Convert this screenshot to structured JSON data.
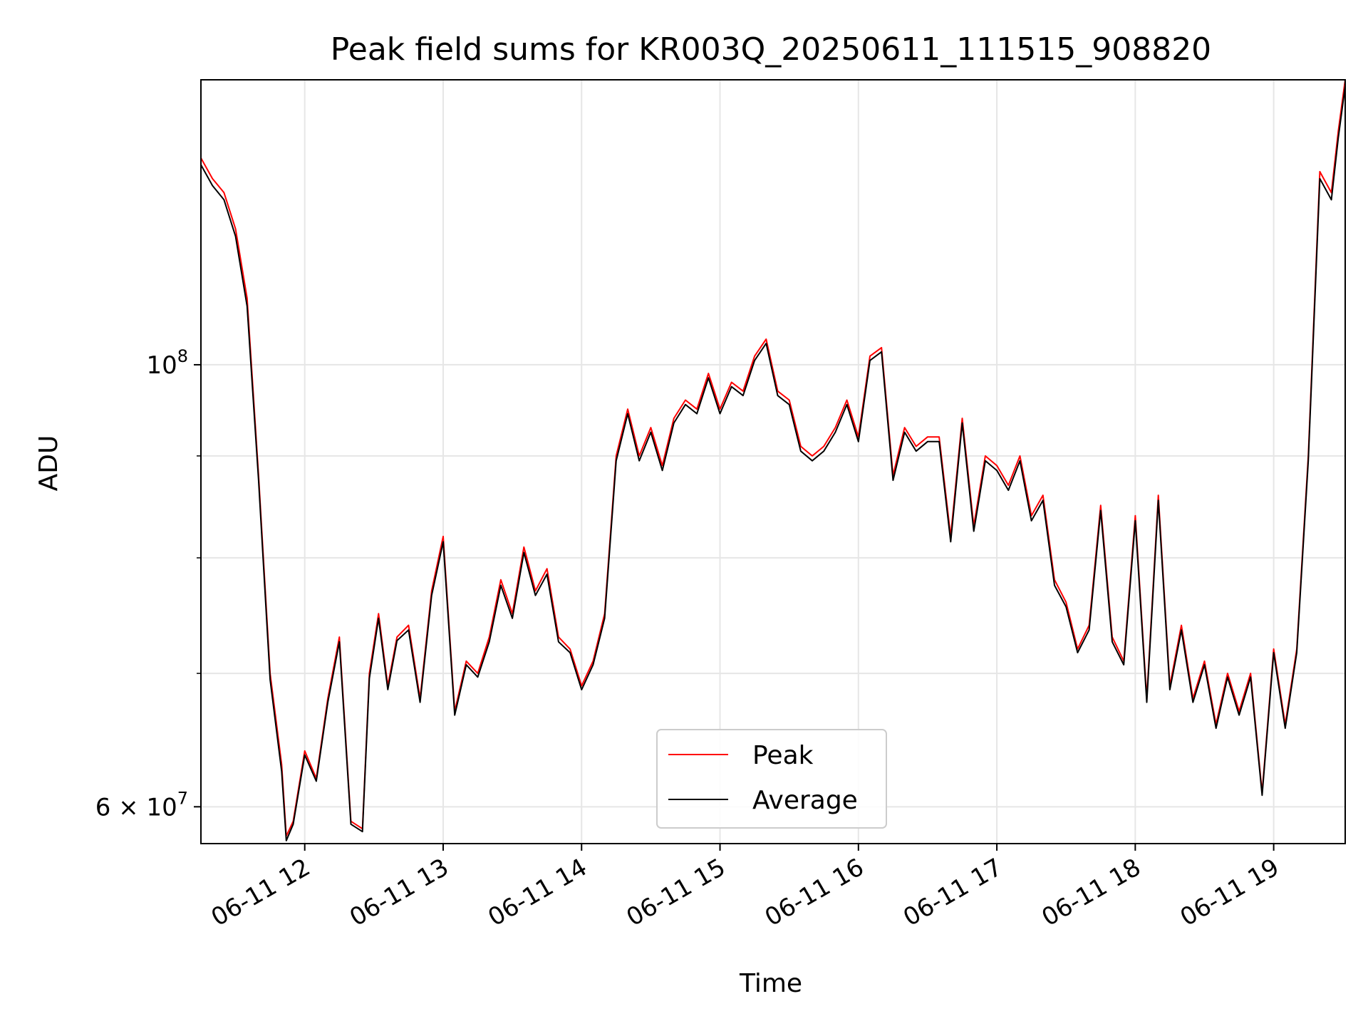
{
  "chart_data": {
    "type": "line",
    "title": "Peak field sums for KR003Q_20250611_111515_908820",
    "xlabel": "Time",
    "ylabel": "ADU",
    "yscale": "log",
    "xlim": [
      "06-11 11:15",
      "06-11 19:31"
    ],
    "ylim": [
      57500000,
      139000000
    ],
    "grid": true,
    "legend_position": "lower center",
    "x_ticks": [
      "06-11 12",
      "06-11 13",
      "06-11 14",
      "06-11 15",
      "06-11 16",
      "06-11 17",
      "06-11 18",
      "06-11 19"
    ],
    "y_ticks": [
      {
        "value": 100000000,
        "base": "10",
        "exp": "8",
        "mult": ""
      },
      {
        "value": 60000000,
        "base": "10",
        "exp": "7",
        "mult": "6 × "
      }
    ],
    "y_minor_ticks": [
      70000000,
      80000000,
      90000000
    ],
    "series": [
      {
        "name": "Peak",
        "color": "#ff0000",
        "x": [
          "06-11 11:15",
          "06-11 11:20",
          "06-11 11:25",
          "06-11 11:30",
          "06-11 11:35",
          "06-11 11:40",
          "06-11 11:45",
          "06-11 11:50",
          "06-11 11:52",
          "06-11 11:55",
          "06-11 12:00",
          "06-11 12:05",
          "06-11 12:10",
          "06-11 12:15",
          "06-11 12:20",
          "06-11 12:25",
          "06-11 12:28",
          "06-11 12:32",
          "06-11 12:36",
          "06-11 12:40",
          "06-11 12:45",
          "06-11 12:50",
          "06-11 12:55",
          "06-11 13:00",
          "06-11 13:05",
          "06-11 13:10",
          "06-11 13:15",
          "06-11 13:20",
          "06-11 13:25",
          "06-11 13:30",
          "06-11 13:35",
          "06-11 13:40",
          "06-11 13:45",
          "06-11 13:50",
          "06-11 13:55",
          "06-11 14:00",
          "06-11 14:05",
          "06-11 14:10",
          "06-11 14:15",
          "06-11 14:20",
          "06-11 14:25",
          "06-11 14:30",
          "06-11 14:35",
          "06-11 14:40",
          "06-11 14:45",
          "06-11 14:50",
          "06-11 14:55",
          "06-11 15:00",
          "06-11 15:05",
          "06-11 15:10",
          "06-11 15:15",
          "06-11 15:20",
          "06-11 15:25",
          "06-11 15:30",
          "06-11 15:35",
          "06-11 15:40",
          "06-11 15:45",
          "06-11 15:50",
          "06-11 15:55",
          "06-11 16:00",
          "06-11 16:05",
          "06-11 16:10",
          "06-11 16:15",
          "06-11 16:20",
          "06-11 16:25",
          "06-11 16:30",
          "06-11 16:35",
          "06-11 16:40",
          "06-11 16:45",
          "06-11 16:50",
          "06-11 16:55",
          "06-11 17:00",
          "06-11 17:05",
          "06-11 17:10",
          "06-11 17:15",
          "06-11 17:20",
          "06-11 17:25",
          "06-11 17:30",
          "06-11 17:35",
          "06-11 17:40",
          "06-11 17:45",
          "06-11 17:50",
          "06-11 17:55",
          "06-11 18:00",
          "06-11 18:05",
          "06-11 18:10",
          "06-11 18:15",
          "06-11 18:20",
          "06-11 18:25",
          "06-11 18:30",
          "06-11 18:35",
          "06-11 18:40",
          "06-11 18:45",
          "06-11 18:50",
          "06-11 18:55",
          "06-11 19:00",
          "06-11 19:05",
          "06-11 19:10",
          "06-11 19:15",
          "06-11 19:20",
          "06-11 19:25",
          "06-11 19:28",
          "06-11 19:31"
        ],
        "y": [
          127000000,
          124000000,
          122000000,
          117000000,
          108000000,
          88000000,
          70000000,
          63000000,
          58000000,
          59000000,
          64000000,
          62000000,
          68000000,
          73000000,
          59000000,
          58500000,
          70000000,
          75000000,
          69000000,
          73000000,
          74000000,
          68000000,
          77000000,
          82000000,
          67000000,
          71000000,
          70000000,
          73000000,
          78000000,
          75000000,
          81000000,
          77000000,
          79000000,
          73000000,
          72000000,
          69000000,
          71000000,
          75000000,
          90000000,
          95000000,
          90000000,
          93000000,
          89000000,
          94000000,
          96000000,
          95000000,
          99000000,
          95000000,
          98000000,
          97000000,
          101000000,
          103000000,
          97000000,
          96000000,
          91000000,
          90000000,
          91000000,
          93000000,
          96000000,
          92000000,
          101000000,
          102000000,
          88000000,
          93000000,
          91000000,
          92000000,
          92000000,
          82000000,
          94000000,
          83000000,
          90000000,
          89000000,
          87000000,
          90000000,
          84000000,
          86000000,
          78000000,
          76000000,
          72000000,
          74000000,
          85000000,
          73000000,
          71000000,
          84000000,
          68000000,
          86000000,
          69000000,
          74000000,
          68000000,
          71000000,
          66000000,
          70000000,
          67000000,
          70000000,
          61000000,
          72000000,
          66000000,
          72000000,
          90000000,
          125000000,
          122000000,
          131000000,
          139000000
        ]
      },
      {
        "name": "Average",
        "color": "#000000",
        "x": [
          "06-11 11:15",
          "06-11 11:20",
          "06-11 11:25",
          "06-11 11:30",
          "06-11 11:35",
          "06-11 11:40",
          "06-11 11:45",
          "06-11 11:50",
          "06-11 11:52",
          "06-11 11:55",
          "06-11 12:00",
          "06-11 12:05",
          "06-11 12:10",
          "06-11 12:15",
          "06-11 12:20",
          "06-11 12:25",
          "06-11 12:28",
          "06-11 12:32",
          "06-11 12:36",
          "06-11 12:40",
          "06-11 12:45",
          "06-11 12:50",
          "06-11 12:55",
          "06-11 13:00",
          "06-11 13:05",
          "06-11 13:10",
          "06-11 13:15",
          "06-11 13:20",
          "06-11 13:25",
          "06-11 13:30",
          "06-11 13:35",
          "06-11 13:40",
          "06-11 13:45",
          "06-11 13:50",
          "06-11 13:55",
          "06-11 14:00",
          "06-11 14:05",
          "06-11 14:10",
          "06-11 14:15",
          "06-11 14:20",
          "06-11 14:25",
          "06-11 14:30",
          "06-11 14:35",
          "06-11 14:40",
          "06-11 14:45",
          "06-11 14:50",
          "06-11 14:55",
          "06-11 15:00",
          "06-11 15:05",
          "06-11 15:10",
          "06-11 15:15",
          "06-11 15:20",
          "06-11 15:25",
          "06-11 15:30",
          "06-11 15:35",
          "06-11 15:40",
          "06-11 15:45",
          "06-11 15:50",
          "06-11 15:55",
          "06-11 16:00",
          "06-11 16:05",
          "06-11 16:10",
          "06-11 16:15",
          "06-11 16:20",
          "06-11 16:25",
          "06-11 16:30",
          "06-11 16:35",
          "06-11 16:40",
          "06-11 16:45",
          "06-11 16:50",
          "06-11 16:55",
          "06-11 17:00",
          "06-11 17:05",
          "06-11 17:10",
          "06-11 17:15",
          "06-11 17:20",
          "06-11 17:25",
          "06-11 17:30",
          "06-11 17:35",
          "06-11 17:40",
          "06-11 17:45",
          "06-11 17:50",
          "06-11 17:55",
          "06-11 18:00",
          "06-11 18:05",
          "06-11 18:10",
          "06-11 18:15",
          "06-11 18:20",
          "06-11 18:25",
          "06-11 18:30",
          "06-11 18:35",
          "06-11 18:40",
          "06-11 18:45",
          "06-11 18:50",
          "06-11 18:55",
          "06-11 19:00",
          "06-11 19:05",
          "06-11 19:10",
          "06-11 19:15",
          "06-11 19:20",
          "06-11 19:25",
          "06-11 19:28",
          "06-11 19:31"
        ],
        "y": [
          126000000,
          123000000,
          121000000,
          116000000,
          107000000,
          87500000,
          69500000,
          62500000,
          57700000,
          58800000,
          63700000,
          61800000,
          67700000,
          72600000,
          58800000,
          58300000,
          69600000,
          74600000,
          68700000,
          72700000,
          73600000,
          67700000,
          76600000,
          81500000,
          66700000,
          70700000,
          69700000,
          72600000,
          77500000,
          74600000,
          80500000,
          76600000,
          78500000,
          72600000,
          71700000,
          68700000,
          70700000,
          74600000,
          89500000,
          94500000,
          89500000,
          92500000,
          88500000,
          93500000,
          95500000,
          94500000,
          98500000,
          94500000,
          97500000,
          96500000,
          100500000,
          102500000,
          96500000,
          95500000,
          90500000,
          89500000,
          90500000,
          92500000,
          95500000,
          91500000,
          100500000,
          101500000,
          87500000,
          92500000,
          90500000,
          91500000,
          91500000,
          81500000,
          93500000,
          82500000,
          89500000,
          88500000,
          86500000,
          89500000,
          83500000,
          85500000,
          77500000,
          75600000,
          71700000,
          73600000,
          84500000,
          72600000,
          70700000,
          83500000,
          67700000,
          85500000,
          68700000,
          73600000,
          67700000,
          70700000,
          65700000,
          69700000,
          66700000,
          69700000,
          60800000,
          71700000,
          65700000,
          71700000,
          89500000,
          124000000,
          121000000,
          130000000,
          138000000
        ]
      }
    ]
  }
}
